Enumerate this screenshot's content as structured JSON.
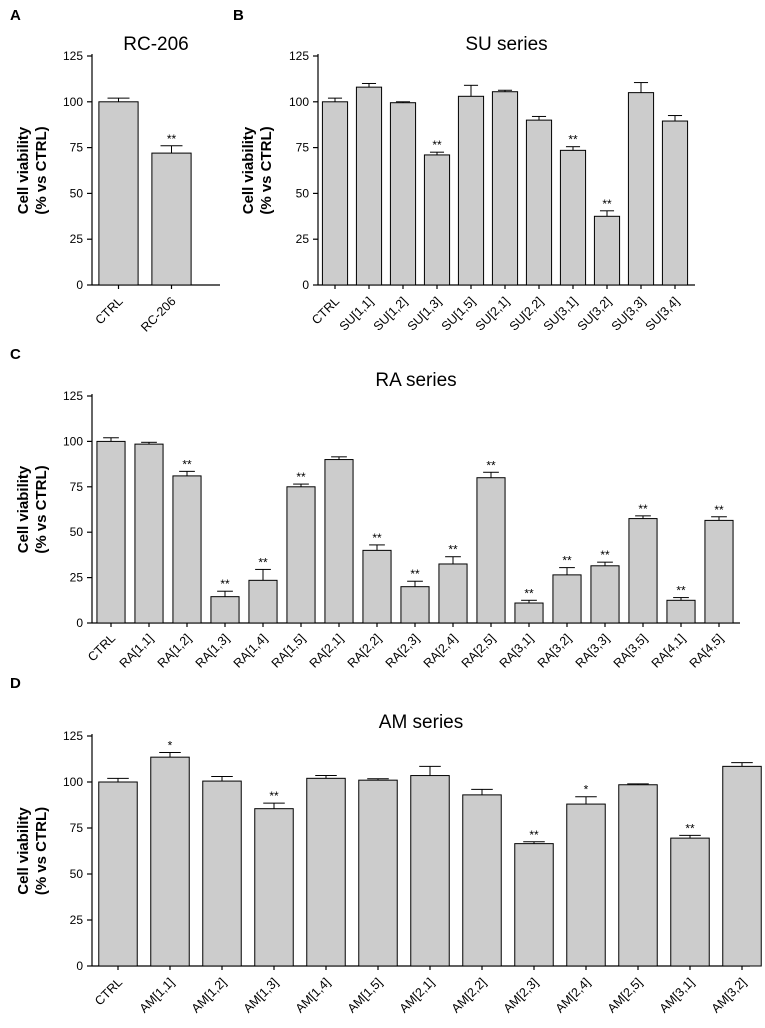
{
  "chart_data": [
    {
      "panel": "A",
      "type": "bar",
      "title": "RC-206",
      "ylabel": [
        "Cell viability",
        "(% vs CTRL)"
      ],
      "xlabel": "",
      "ylim": [
        0,
        125
      ],
      "yticks": [
        "0",
        "25",
        "50",
        "75",
        "100",
        "125"
      ],
      "categories": [
        "CTRL",
        "RC-206"
      ],
      "values": [
        100,
        72
      ],
      "errors": [
        2,
        4
      ],
      "significance": [
        "",
        "**"
      ]
    },
    {
      "panel": "B",
      "type": "bar",
      "title": "SU series",
      "ylabel": [
        "Cell viability",
        "(% vs CTRL)"
      ],
      "xlabel": "",
      "ylim": [
        0,
        125
      ],
      "yticks": [
        "0",
        "25",
        "50",
        "75",
        "100",
        "125"
      ],
      "categories": [
        "CTRL",
        "SU[1,1]",
        "SU[1,2]",
        "SU[1,3]",
        "SU[1,5]",
        "SU[2,1]",
        "SU[2,2]",
        "SU[3,1]",
        "SU[3,2]",
        "SU[3,3]",
        "SU[3,4]"
      ],
      "values": [
        100,
        108,
        99.5,
        71,
        103,
        105.5,
        90,
        73.5,
        37.5,
        105,
        89.5
      ],
      "errors": [
        2,
        2,
        0.5,
        1.5,
        6,
        0.8,
        2,
        2,
        3,
        5.5,
        3
      ],
      "significance": [
        "",
        "",
        "",
        "**",
        "",
        "",
        "",
        "**",
        "**",
        "",
        ""
      ]
    },
    {
      "panel": "C",
      "type": "bar",
      "title": "RA series",
      "ylabel": [
        "Cell viability",
        "(% vs CTRL)"
      ],
      "xlabel": "",
      "ylim": [
        0,
        125
      ],
      "yticks": [
        "0",
        "25",
        "50",
        "75",
        "100",
        "125"
      ],
      "categories": [
        "CTRL",
        "RA[1,1]",
        "RA[1,2]",
        "RA[1,3]",
        "RA[1,4]",
        "RA[1,5]",
        "RA[2,1]",
        "RA[2,2]",
        "RA[2,3]",
        "RA[2,4]",
        "RA[2,5]",
        "RA[3,1]",
        "RA[3,2]",
        "RA[3,3]",
        "RA[3,5]",
        "RA[4,1]",
        "RA[4,5]"
      ],
      "values": [
        100,
        98.5,
        81,
        14.5,
        23.5,
        75,
        90,
        40,
        20,
        32.5,
        80,
        11,
        26.5,
        31.5,
        57.5,
        12.5,
        56.5
      ],
      "errors": [
        2,
        1,
        2.5,
        3,
        6,
        1.5,
        1.5,
        3,
        3,
        4,
        3,
        1.5,
        4,
        2,
        1.5,
        1.5,
        2
      ],
      "significance": [
        "",
        "",
        "**",
        "**",
        "**",
        "**",
        "",
        "**",
        "**",
        "**",
        "**",
        "**",
        "**",
        "**",
        "**",
        "**",
        "**"
      ]
    },
    {
      "panel": "D",
      "type": "bar",
      "title": "AM series",
      "ylabel": [
        "Cell viability",
        "(% vs CTRL)"
      ],
      "xlabel": "",
      "ylim": [
        0,
        125
      ],
      "yticks": [
        "0",
        "25",
        "50",
        "75",
        "100",
        "125"
      ],
      "categories": [
        "CTRL",
        "AM[1,1]",
        "AM[1,2]",
        "AM[1,3]",
        "AM[1,4]",
        "AM[1,5]",
        "AM[2,1]",
        "AM[2,2]",
        "AM[2,3]",
        "AM[2,4]",
        "AM[2,5]",
        "AM[3,1]",
        "AM[3,2]"
      ],
      "values": [
        100,
        113.5,
        100.5,
        85.5,
        102,
        101,
        103.5,
        93,
        66.5,
        88,
        98.5,
        69.5,
        108.5
      ],
      "errors": [
        2,
        2.5,
        2.5,
        3,
        1.5,
        0.8,
        5,
        3,
        1,
        4,
        0.5,
        1.5,
        2
      ],
      "significance": [
        "",
        "*",
        "",
        "**",
        "",
        "",
        "",
        "",
        "**",
        "*",
        "",
        "**",
        ""
      ]
    }
  ]
}
